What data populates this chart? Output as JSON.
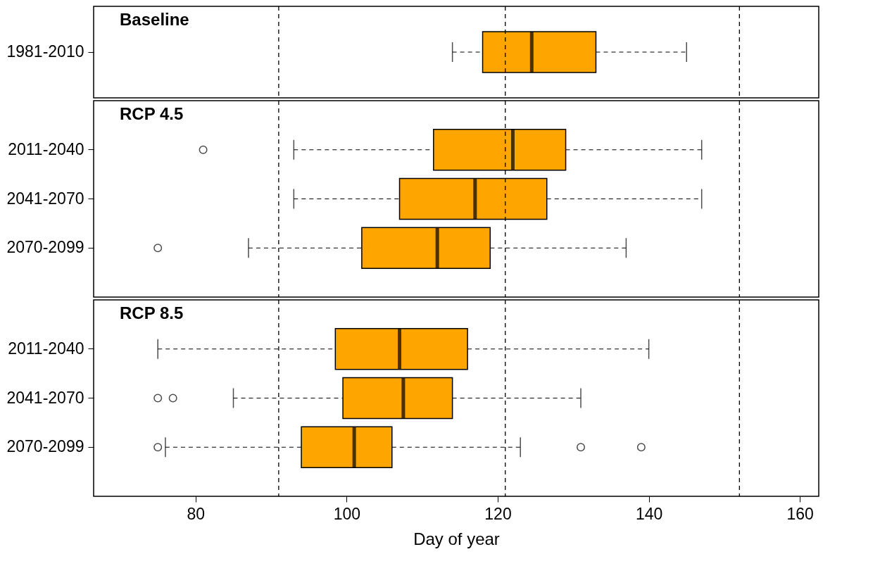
{
  "chart_data": [
    {
      "type": "box",
      "title": "Baseline",
      "orientation": "horizontal",
      "categories": [
        "1981-2010"
      ],
      "xlim": [
        66.5,
        162.5
      ],
      "tick_labels": "y",
      "series": [
        {
          "color": "#ffa500",
          "boxes": [
            {
              "low": 114,
              "q1": 118,
              "median": 124.5,
              "q3": 133,
              "high": 145
            }
          ]
        }
      ],
      "ref_lines": [
        {
          "axis": "x",
          "value": 91,
          "line_style": "dashed"
        },
        {
          "axis": "x",
          "value": 121,
          "line_style": "dashed"
        },
        {
          "axis": "x",
          "value": 152,
          "line_style": "dashed"
        }
      ]
    },
    {
      "type": "box",
      "title": "RCP 4.5",
      "orientation": "horizontal",
      "categories": [
        "2011-2040",
        "2041-2070",
        "2070-2099"
      ],
      "xlim": [
        66.5,
        162.5
      ],
      "tick_labels": "y",
      "series": [
        {
          "color": "#ffa500",
          "boxes": [
            {
              "low": 93,
              "q1": 111.5,
              "median": 122,
              "q3": 129,
              "high": 147,
              "outliers": [
                81
              ]
            },
            {
              "low": 93,
              "q1": 107,
              "median": 117,
              "q3": 126.5,
              "high": 147
            },
            {
              "low": 87,
              "q1": 102,
              "median": 112,
              "q3": 119,
              "high": 137,
              "outliers": [
                75
              ]
            }
          ]
        }
      ],
      "ref_lines": [
        {
          "axis": "x",
          "value": 91,
          "line_style": "dashed"
        },
        {
          "axis": "x",
          "value": 121,
          "line_style": "dashed"
        },
        {
          "axis": "x",
          "value": 152,
          "line_style": "dashed"
        }
      ]
    },
    {
      "type": "box",
      "title": "RCP 8.5",
      "orientation": "horizontal",
      "categories": [
        "2011-2040",
        "2041-2070",
        "2070-2099"
      ],
      "xlabel": "Day of year",
      "xlim": [
        66.5,
        162.5
      ],
      "xticks": [
        80,
        100,
        120,
        140,
        160
      ],
      "series": [
        {
          "color": "#ffa500",
          "boxes": [
            {
              "low": 75,
              "q1": 98.5,
              "median": 107,
              "q3": 116,
              "high": 140
            },
            {
              "low": 85,
              "q1": 99.5,
              "median": 107.5,
              "q3": 114,
              "high": 131,
              "outliers": [
                75,
                77
              ]
            },
            {
              "low": 76,
              "q1": 94,
              "median": 101,
              "q3": 106,
              "high": 123,
              "outliers": [
                75,
                131,
                139
              ]
            }
          ]
        }
      ],
      "ref_lines": [
        {
          "axis": "x",
          "value": 91,
          "line_style": "dashed"
        },
        {
          "axis": "x",
          "value": 121,
          "line_style": "dashed"
        },
        {
          "axis": "x",
          "value": 152,
          "line_style": "dashed"
        }
      ]
    }
  ]
}
